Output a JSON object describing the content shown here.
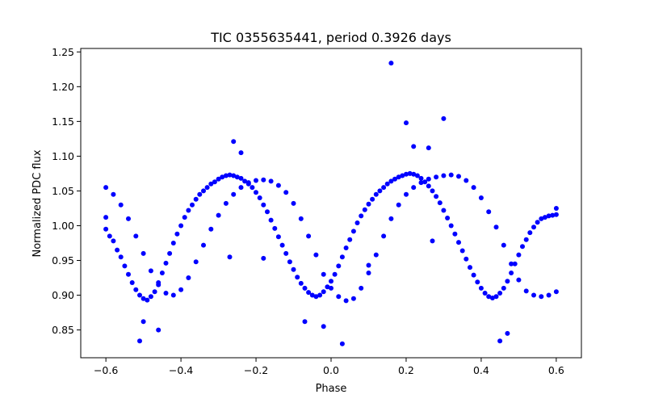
{
  "chart_data": {
    "type": "scatter",
    "title": "TIC 0355635441, period 0.3926 days",
    "xlabel": "Phase",
    "ylabel": "Normalized PDC flux",
    "xlim": [
      -0.667,
      0.667
    ],
    "ylim": [
      0.81,
      1.255
    ],
    "xticks": [
      -0.6,
      -0.4,
      -0.2,
      0.0,
      0.2,
      0.4,
      0.6
    ],
    "xtick_labels": [
      "−0.6",
      "−0.4",
      "−0.2",
      "0.0",
      "0.2",
      "0.4",
      "0.6"
    ],
    "yticks": [
      0.85,
      0.9,
      0.95,
      1.0,
      1.05,
      1.1,
      1.15,
      1.2,
      1.25
    ],
    "ytick_labels": [
      "0.85",
      "0.90",
      "0.95",
      "1.00",
      "1.05",
      "1.10",
      "1.15",
      "1.20",
      "1.25"
    ],
    "grid": false,
    "marker_color": "#0000ff",
    "series": [
      {
        "values": [
          [
            -0.6,
            1.055
          ],
          [
            -0.58,
            1.045
          ],
          [
            -0.56,
            1.03
          ],
          [
            -0.54,
            1.01
          ],
          [
            -0.52,
            0.985
          ],
          [
            -0.5,
            0.96
          ],
          [
            -0.48,
            0.935
          ],
          [
            -0.46,
            0.915
          ],
          [
            -0.44,
            0.903
          ],
          [
            -0.42,
            0.9
          ],
          [
            -0.4,
            0.908
          ],
          [
            -0.38,
            0.925
          ],
          [
            -0.36,
            0.948
          ],
          [
            -0.34,
            0.972
          ],
          [
            -0.32,
            0.995
          ],
          [
            -0.3,
            1.015
          ],
          [
            -0.28,
            1.032
          ],
          [
            -0.26,
            1.045
          ],
          [
            -0.24,
            1.055
          ],
          [
            -0.22,
            1.062
          ],
          [
            -0.2,
            1.065
          ],
          [
            -0.18,
            1.066
          ],
          [
            -0.16,
            1.064
          ],
          [
            -0.14,
            1.058
          ],
          [
            -0.12,
            1.048
          ],
          [
            -0.1,
            1.032
          ],
          [
            -0.08,
            1.01
          ],
          [
            -0.06,
            0.985
          ],
          [
            -0.04,
            0.958
          ],
          [
            -0.02,
            0.93
          ],
          [
            0.0,
            0.91
          ],
          [
            0.02,
            0.898
          ],
          [
            0.04,
            0.892
          ],
          [
            0.06,
            0.895
          ],
          [
            0.08,
            0.91
          ],
          [
            0.1,
            0.932
          ],
          [
            0.12,
            0.958
          ],
          [
            0.14,
            0.985
          ],
          [
            0.16,
            1.01
          ],
          [
            0.18,
            1.03
          ],
          [
            0.2,
            1.045
          ],
          [
            0.22,
            1.055
          ],
          [
            0.24,
            1.062
          ],
          [
            0.26,
            1.067
          ],
          [
            0.28,
            1.07
          ],
          [
            0.3,
            1.072
          ],
          [
            0.32,
            1.073
          ],
          [
            0.34,
            1.071
          ],
          [
            0.36,
            1.065
          ],
          [
            0.38,
            1.055
          ],
          [
            0.4,
            1.04
          ],
          [
            0.42,
            1.02
          ],
          [
            0.44,
            0.998
          ],
          [
            0.46,
            0.972
          ],
          [
            0.48,
            0.945
          ],
          [
            0.5,
            0.922
          ],
          [
            0.52,
            0.906
          ],
          [
            0.54,
            0.9
          ],
          [
            0.56,
            0.898
          ],
          [
            0.58,
            0.9
          ],
          [
            0.6,
            0.905
          ],
          [
            -0.6,
            0.995
          ],
          [
            -0.59,
            0.985
          ],
          [
            -0.58,
            0.978
          ],
          [
            -0.57,
            0.965
          ],
          [
            -0.56,
            0.955
          ],
          [
            -0.55,
            0.942
          ],
          [
            -0.54,
            0.93
          ],
          [
            -0.53,
            0.918
          ],
          [
            -0.52,
            0.908
          ],
          [
            -0.51,
            0.9
          ],
          [
            -0.5,
            0.895
          ],
          [
            -0.49,
            0.893
          ],
          [
            -0.48,
            0.898
          ],
          [
            -0.47,
            0.905
          ],
          [
            -0.46,
            0.918
          ],
          [
            -0.45,
            0.932
          ],
          [
            -0.44,
            0.946
          ],
          [
            -0.43,
            0.96
          ],
          [
            -0.42,
            0.975
          ],
          [
            -0.41,
            0.988
          ],
          [
            -0.4,
            1.0
          ],
          [
            -0.39,
            1.012
          ],
          [
            -0.38,
            1.022
          ],
          [
            -0.37,
            1.03
          ],
          [
            -0.36,
            1.038
          ],
          [
            -0.35,
            1.045
          ],
          [
            -0.34,
            1.05
          ],
          [
            -0.33,
            1.055
          ],
          [
            -0.32,
            1.06
          ],
          [
            -0.31,
            1.063
          ],
          [
            -0.3,
            1.067
          ],
          [
            -0.29,
            1.07
          ],
          [
            -0.28,
            1.072
          ],
          [
            -0.27,
            1.073
          ],
          [
            -0.26,
            1.072
          ],
          [
            -0.25,
            1.07
          ],
          [
            -0.24,
            1.068
          ],
          [
            -0.23,
            1.064
          ],
          [
            -0.22,
            1.06
          ],
          [
            -0.21,
            1.055
          ],
          [
            -0.2,
            1.048
          ],
          [
            -0.19,
            1.04
          ],
          [
            -0.18,
            1.03
          ],
          [
            -0.17,
            1.02
          ],
          [
            -0.16,
            1.008
          ],
          [
            -0.15,
            0.996
          ],
          [
            -0.14,
            0.984
          ],
          [
            -0.13,
            0.972
          ],
          [
            -0.12,
            0.96
          ],
          [
            -0.11,
            0.948
          ],
          [
            -0.1,
            0.937
          ],
          [
            -0.09,
            0.926
          ],
          [
            -0.08,
            0.917
          ],
          [
            -0.07,
            0.91
          ],
          [
            -0.06,
            0.904
          ],
          [
            -0.05,
            0.9
          ],
          [
            -0.04,
            0.898
          ],
          [
            -0.03,
            0.9
          ],
          [
            -0.02,
            0.905
          ],
          [
            -0.01,
            0.912
          ],
          [
            0.0,
            0.92
          ],
          [
            0.01,
            0.93
          ],
          [
            0.02,
            0.942
          ],
          [
            0.03,
            0.955
          ],
          [
            0.04,
            0.968
          ],
          [
            0.05,
            0.98
          ],
          [
            0.06,
            0.992
          ],
          [
            0.07,
            1.004
          ],
          [
            0.08,
            1.014
          ],
          [
            0.09,
            1.023
          ],
          [
            0.1,
            1.031
          ],
          [
            0.11,
            1.038
          ],
          [
            0.12,
            1.045
          ],
          [
            0.13,
            1.05
          ],
          [
            0.14,
            1.055
          ],
          [
            0.15,
            1.06
          ],
          [
            0.16,
            1.064
          ],
          [
            0.17,
            1.067
          ],
          [
            0.18,
            1.07
          ],
          [
            0.19,
            1.072
          ],
          [
            0.2,
            1.074
          ],
          [
            0.21,
            1.075
          ],
          [
            0.22,
            1.074
          ],
          [
            0.23,
            1.072
          ],
          [
            0.24,
            1.068
          ],
          [
            0.25,
            1.063
          ],
          [
            0.26,
            1.057
          ],
          [
            0.27,
            1.05
          ],
          [
            0.28,
            1.042
          ],
          [
            0.29,
            1.033
          ],
          [
            0.3,
            1.022
          ],
          [
            0.31,
            1.011
          ],
          [
            0.32,
            1.0
          ],
          [
            0.33,
            0.988
          ],
          [
            0.34,
            0.976
          ],
          [
            0.35,
            0.964
          ],
          [
            0.36,
            0.952
          ],
          [
            0.37,
            0.94
          ],
          [
            0.38,
            0.929
          ],
          [
            0.39,
            0.919
          ],
          [
            0.4,
            0.91
          ],
          [
            0.41,
            0.903
          ],
          [
            0.42,
            0.898
          ],
          [
            0.43,
            0.896
          ],
          [
            0.44,
            0.898
          ],
          [
            0.45,
            0.903
          ],
          [
            0.46,
            0.91
          ],
          [
            0.47,
            0.92
          ],
          [
            0.48,
            0.932
          ],
          [
            0.49,
            0.945
          ],
          [
            0.5,
            0.958
          ],
          [
            0.51,
            0.97
          ],
          [
            0.52,
            0.98
          ],
          [
            0.53,
            0.99
          ],
          [
            0.54,
            0.998
          ],
          [
            0.55,
            1.005
          ],
          [
            0.56,
            1.01
          ],
          [
            0.57,
            1.012
          ],
          [
            0.58,
            1.014
          ],
          [
            0.59,
            1.015
          ],
          [
            0.6,
            1.016
          ],
          [
            0.16,
            1.234
          ],
          [
            0.3,
            1.154
          ],
          [
            0.2,
            1.148
          ],
          [
            -0.26,
            1.121
          ],
          [
            0.22,
            1.114
          ],
          [
            0.26,
            1.112
          ],
          [
            -0.24,
            1.105
          ],
          [
            -0.51,
            0.834
          ],
          [
            0.03,
            0.83
          ],
          [
            -0.46,
            0.85
          ],
          [
            0.45,
            0.834
          ],
          [
            -0.5,
            0.862
          ],
          [
            0.47,
            0.845
          ],
          [
            -0.27,
            0.955
          ],
          [
            -0.18,
            0.953
          ],
          [
            0.6,
            1.025
          ],
          [
            -0.6,
            1.012
          ],
          [
            0.1,
            0.943
          ],
          [
            0.27,
            0.978
          ],
          [
            -0.07,
            0.862
          ],
          [
            -0.02,
            0.855
          ]
        ]
      }
    ]
  }
}
